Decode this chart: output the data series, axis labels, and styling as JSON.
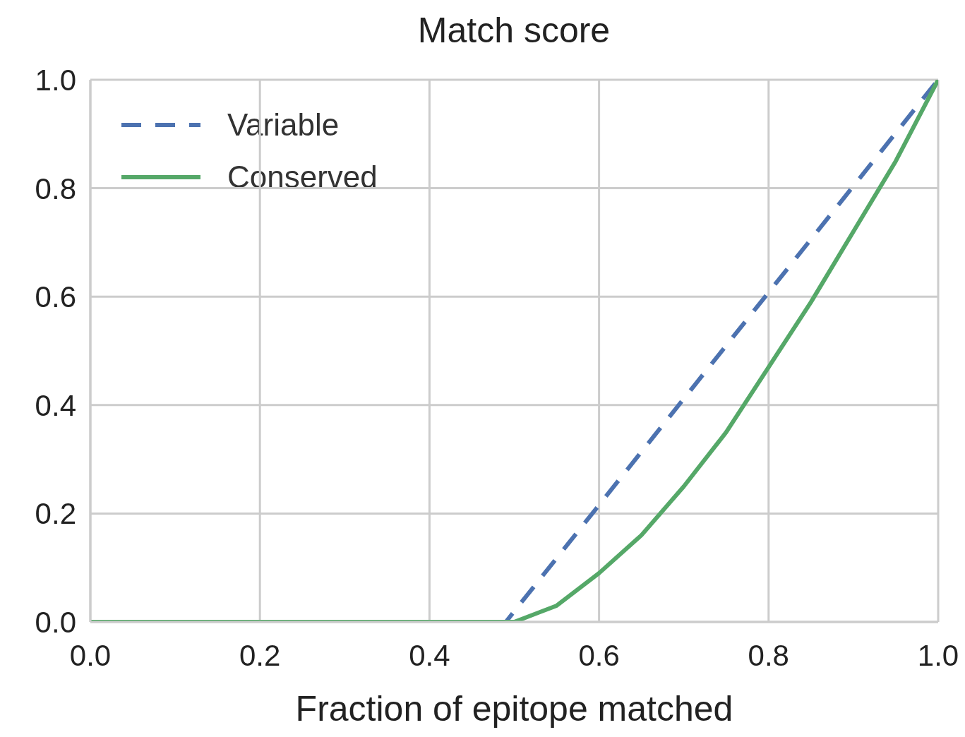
{
  "chart_data": {
    "type": "line",
    "title": "Match score",
    "xlabel": "Fraction of epitope matched",
    "series": [
      {
        "name": "Variable",
        "color": "#4c72b0",
        "line_style": "dashed",
        "x": [
          0,
          0.49,
          1.0
        ],
        "values": [
          0,
          0,
          1.0
        ]
      },
      {
        "name": "Conserved",
        "color": "#55a868",
        "line_style": "solid",
        "x": [
          0,
          0.5,
          0.55,
          0.6,
          0.65,
          0.7,
          0.75,
          0.8,
          0.85,
          0.9,
          0.95,
          1.0
        ],
        "values": [
          0,
          0,
          0.03,
          0.09,
          0.16,
          0.25,
          0.35,
          0.47,
          0.59,
          0.72,
          0.85,
          1.0
        ]
      }
    ],
    "xlim": [
      0,
      1
    ],
    "ylim": [
      0,
      1
    ],
    "xticks": [
      {
        "value": 0,
        "label": "0.0"
      },
      0.2,
      0.4,
      0.6,
      0.8,
      {
        "value": 1,
        "label": "1.0"
      }
    ],
    "yticks": [
      {
        "value": 0,
        "label": "0.0"
      },
      0.2,
      0.4,
      0.6,
      0.8,
      {
        "value": 1,
        "label": "1.0"
      }
    ],
    "grid": true,
    "legend": "top left",
    "marker": "none"
  }
}
